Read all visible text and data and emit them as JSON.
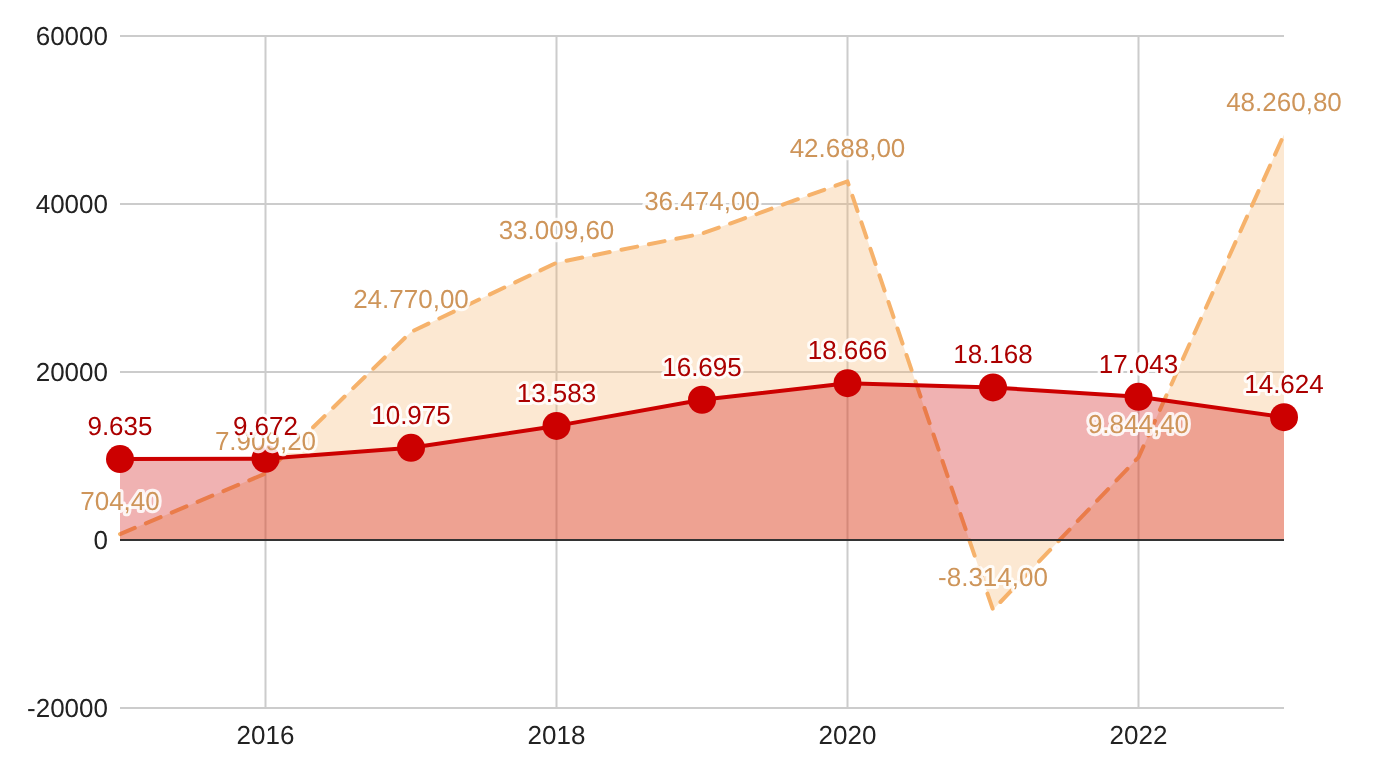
{
  "chart_data": {
    "type": "area",
    "x": [
      2015,
      2016,
      2017,
      2018,
      2019,
      2020,
      2021,
      2022,
      2023
    ],
    "xlim": [
      2015,
      2023
    ],
    "xticks": [
      2016,
      2018,
      2020,
      2022
    ],
    "ylim": [
      -20000,
      60000
    ],
    "yticks": [
      -20000,
      0,
      20000,
      40000,
      60000
    ],
    "grid": true,
    "series": [
      {
        "color": "#f6b26b",
        "line_style": "dashed",
        "marker": "none",
        "values": [
          704.4,
          7909.2,
          24770,
          33009.6,
          36474,
          42688,
          -8314,
          9844.4,
          48260.8
        ],
        "value_labels": [
          "704,40",
          "7.909,20",
          "24.770,00",
          "33.009,60",
          "36.474,00",
          "42.688,00",
          "-8.314,00",
          "9.844,40",
          "48.260,80"
        ]
      },
      {
        "color": "#cc0000",
        "line_style": "solid",
        "marker": "circle",
        "values": [
          9635,
          9672,
          10975,
          13583,
          16695,
          18666,
          18168,
          17043,
          14624
        ],
        "value_labels": [
          "9.635",
          "9.672",
          "10.975",
          "13.583",
          "16.695",
          "18.666",
          "18.168",
          "17.043",
          "14.624"
        ]
      }
    ]
  }
}
